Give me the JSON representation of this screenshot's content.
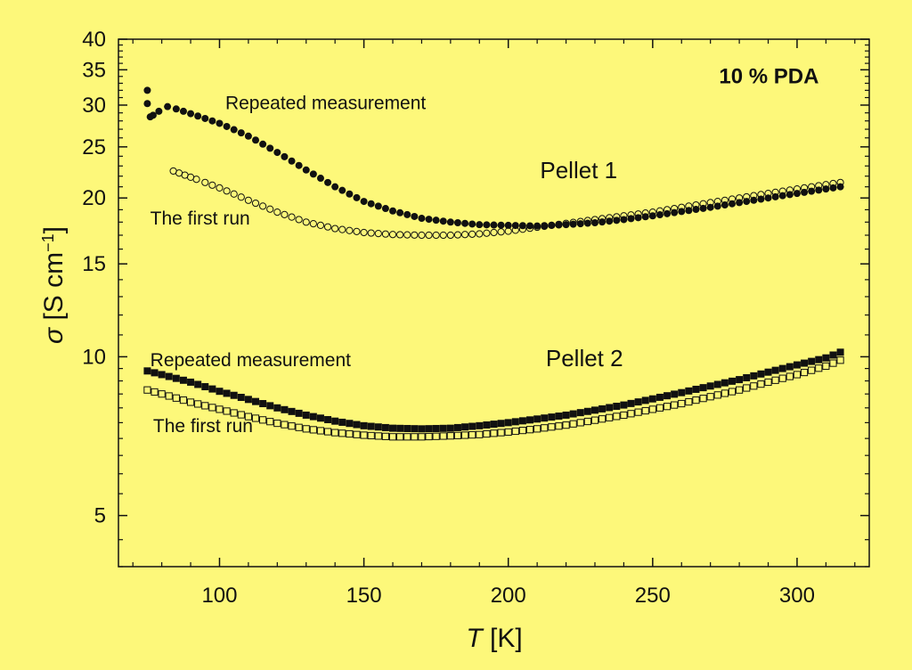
{
  "chart_data": {
    "type": "scatter",
    "title": "",
    "xlabel": {
      "symbol": "T",
      "unit": "[K]"
    },
    "ylabel": {
      "symbol": "σ",
      "unit_main": "[S cm",
      "unit_sup": "−1",
      "unit_end": "]"
    },
    "xlim": [
      65,
      325
    ],
    "ylim": [
      4,
      40
    ],
    "yscale": "log",
    "xticks": [
      100,
      150,
      200,
      250,
      300
    ],
    "yticks": [
      5,
      10,
      15,
      20,
      25,
      30,
      35,
      40
    ],
    "grid": false,
    "annotations": [
      {
        "text": "10 % PDA",
        "style": "bold",
        "x": 273,
        "y": 33
      },
      {
        "text": "Repeated measurement",
        "style": "normal",
        "x": 102,
        "y": 29.5
      },
      {
        "text": "Pellet 1",
        "style": "big",
        "x": 211,
        "y": 21.8
      },
      {
        "text": "The first run",
        "style": "normal",
        "x": 76,
        "y": 17.8
      },
      {
        "text": "Repeated measurement",
        "style": "normal",
        "x": 76,
        "y": 9.6
      },
      {
        "text": "Pellet 2",
        "style": "big",
        "x": 213,
        "y": 9.6
      },
      {
        "text": "The first run",
        "style": "normal",
        "x": 77,
        "y": 7.2
      }
    ],
    "series": [
      {
        "group": "Pellet 1",
        "run": "Repeated measurement",
        "marker": "filled-circle",
        "points": [
          [
            75,
            32
          ],
          [
            75,
            30.2
          ],
          [
            76,
            28.5
          ],
          [
            77,
            28.7
          ],
          [
            79,
            29.2
          ],
          [
            82,
            29.8
          ],
          [
            85,
            29.5
          ],
          [
            90,
            28.9
          ],
          [
            100,
            27.7
          ],
          [
            110,
            26.2
          ],
          [
            120,
            24.4
          ],
          [
            130,
            22.6
          ],
          [
            140,
            21.0
          ],
          [
            150,
            19.7
          ],
          [
            160,
            18.9
          ],
          [
            170,
            18.3
          ],
          [
            180,
            18.0
          ],
          [
            190,
            17.8
          ],
          [
            200,
            17.75
          ],
          [
            210,
            17.7
          ],
          [
            220,
            17.8
          ],
          [
            230,
            17.95
          ],
          [
            240,
            18.2
          ],
          [
            250,
            18.5
          ],
          [
            260,
            18.85
          ],
          [
            270,
            19.2
          ],
          [
            280,
            19.6
          ],
          [
            290,
            20.0
          ],
          [
            300,
            20.4
          ],
          [
            310,
            20.8
          ],
          [
            315,
            21.0
          ]
        ]
      },
      {
        "group": "Pellet 1",
        "run": "The first run",
        "marker": "open-circle",
        "points": [
          [
            84,
            22.5
          ],
          [
            86,
            22.3
          ],
          [
            88,
            22.1
          ],
          [
            90,
            21.9
          ],
          [
            92,
            21.7
          ],
          [
            95,
            21.4
          ],
          [
            100,
            20.9
          ],
          [
            110,
            19.8
          ],
          [
            120,
            18.8
          ],
          [
            130,
            18.0
          ],
          [
            140,
            17.5
          ],
          [
            150,
            17.2
          ],
          [
            160,
            17.05
          ],
          [
            170,
            17.0
          ],
          [
            180,
            17.0
          ],
          [
            190,
            17.1
          ],
          [
            200,
            17.3
          ],
          [
            210,
            17.6
          ],
          [
            220,
            17.9
          ],
          [
            230,
            18.2
          ],
          [
            240,
            18.5
          ],
          [
            250,
            18.8
          ],
          [
            260,
            19.2
          ],
          [
            270,
            19.6
          ],
          [
            280,
            20.0
          ],
          [
            290,
            20.4
          ],
          [
            300,
            20.8
          ],
          [
            310,
            21.2
          ],
          [
            315,
            21.4
          ]
        ]
      },
      {
        "group": "Pellet 2",
        "run": "Repeated measurement",
        "marker": "filled-square",
        "points": [
          [
            75,
            9.4
          ],
          [
            80,
            9.25
          ],
          [
            90,
            8.95
          ],
          [
            100,
            8.6
          ],
          [
            110,
            8.3
          ],
          [
            120,
            8.0
          ],
          [
            130,
            7.75
          ],
          [
            140,
            7.55
          ],
          [
            150,
            7.4
          ],
          [
            160,
            7.32
          ],
          [
            170,
            7.3
          ],
          [
            180,
            7.32
          ],
          [
            190,
            7.4
          ],
          [
            200,
            7.5
          ],
          [
            210,
            7.62
          ],
          [
            220,
            7.75
          ],
          [
            230,
            7.92
          ],
          [
            240,
            8.1
          ],
          [
            250,
            8.32
          ],
          [
            260,
            8.55
          ],
          [
            270,
            8.8
          ],
          [
            280,
            9.05
          ],
          [
            290,
            9.35
          ],
          [
            300,
            9.65
          ],
          [
            310,
            9.95
          ],
          [
            315,
            10.2
          ]
        ]
      },
      {
        "group": "Pellet 2",
        "run": "The first run",
        "marker": "open-square",
        "points": [
          [
            75,
            8.65
          ],
          [
            80,
            8.5
          ],
          [
            90,
            8.2
          ],
          [
            100,
            7.95
          ],
          [
            110,
            7.7
          ],
          [
            120,
            7.48
          ],
          [
            130,
            7.3
          ],
          [
            140,
            7.18
          ],
          [
            150,
            7.1
          ],
          [
            160,
            7.05
          ],
          [
            170,
            7.05
          ],
          [
            180,
            7.08
          ],
          [
            190,
            7.12
          ],
          [
            200,
            7.2
          ],
          [
            210,
            7.3
          ],
          [
            220,
            7.42
          ],
          [
            230,
            7.58
          ],
          [
            240,
            7.75
          ],
          [
            250,
            7.95
          ],
          [
            260,
            8.15
          ],
          [
            270,
            8.4
          ],
          [
            280,
            8.65
          ],
          [
            290,
            8.95
          ],
          [
            300,
            9.25
          ],
          [
            310,
            9.6
          ],
          [
            315,
            9.85
          ]
        ]
      }
    ]
  }
}
